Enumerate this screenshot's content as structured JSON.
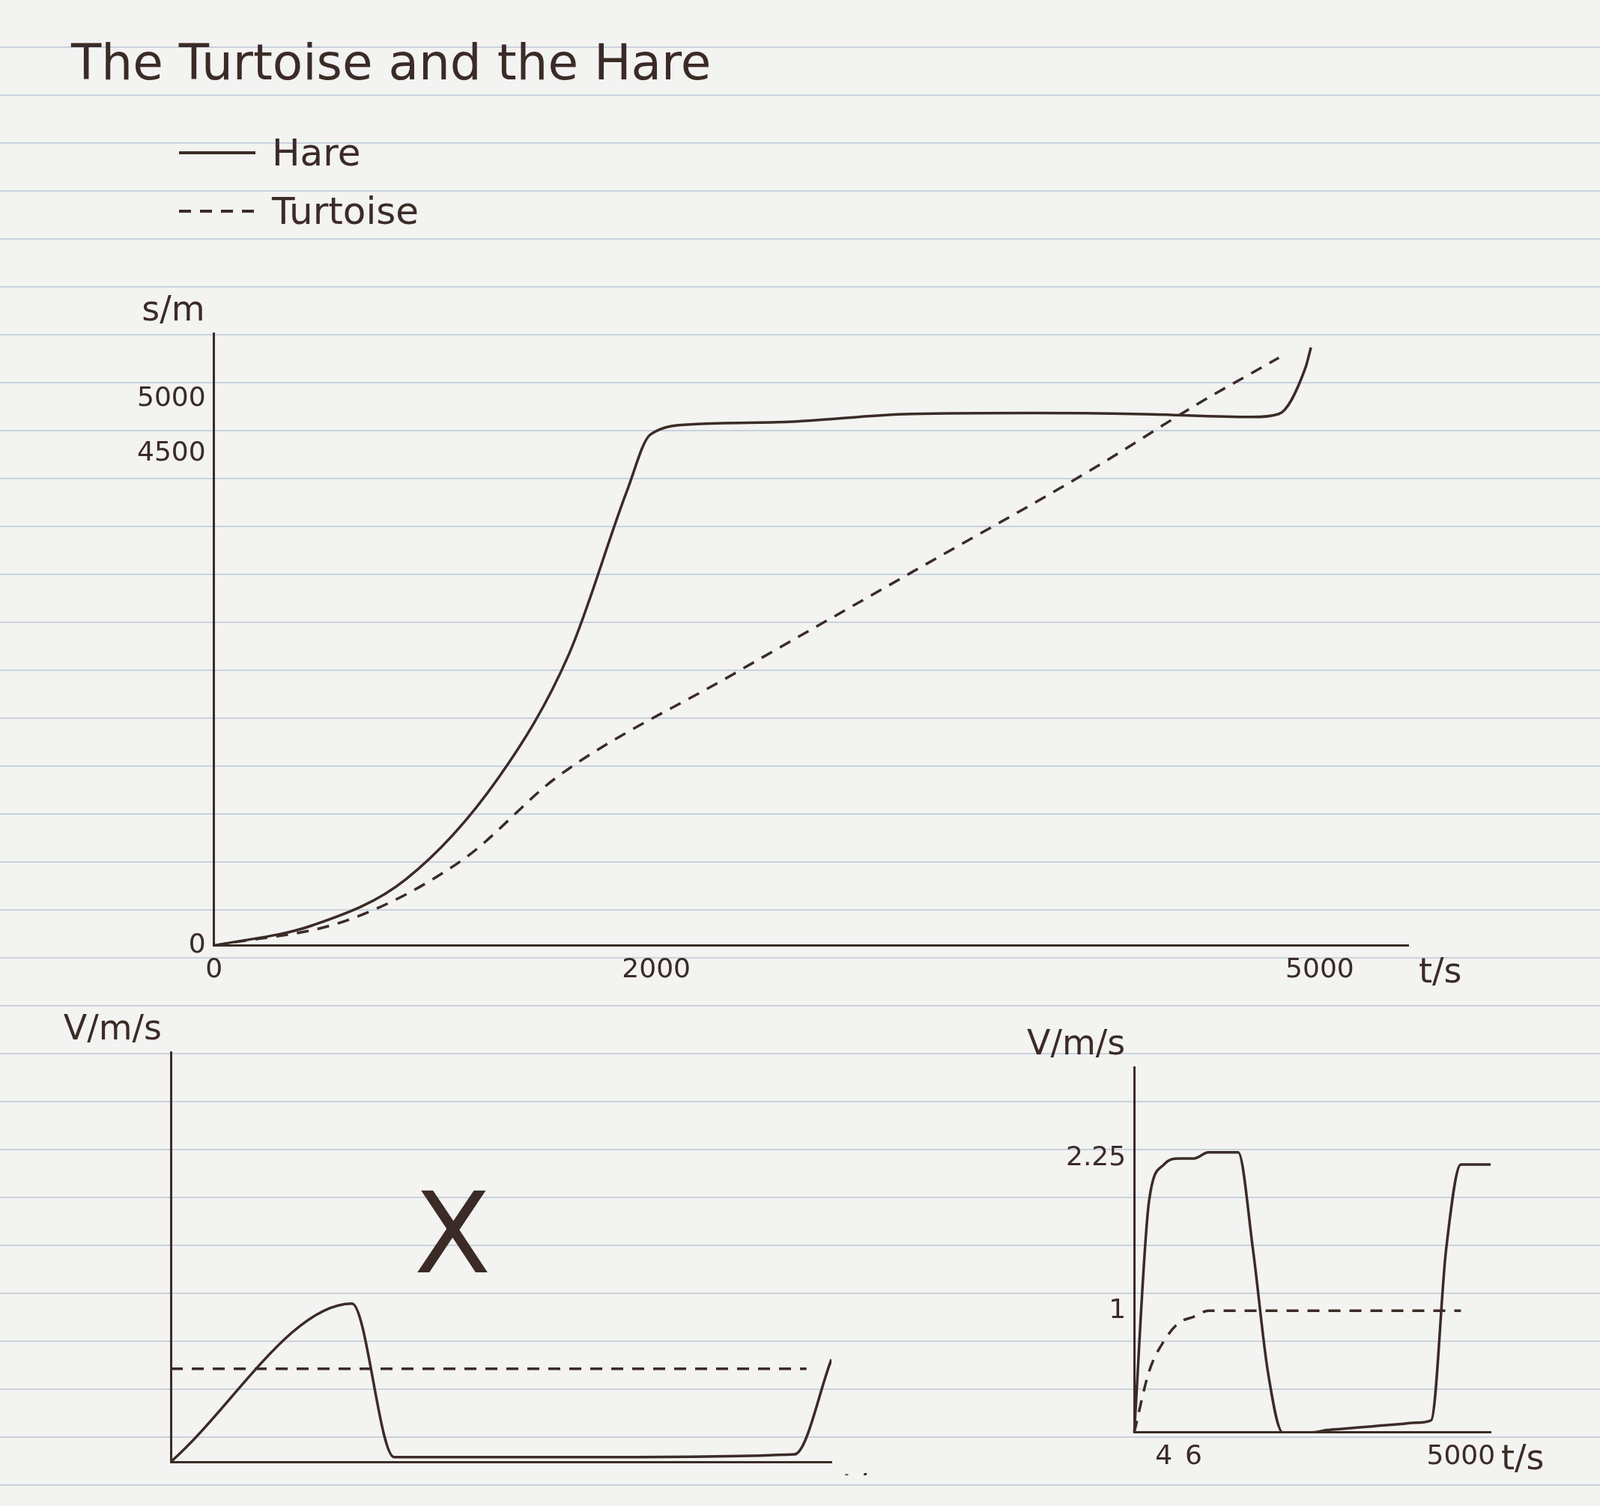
{
  "chart_data": [
    {
      "type": "line",
      "title": "The Turtoise and the Hare",
      "xlabel": "t/s",
      "ylabel": "s/m",
      "xlim": [
        0,
        5400
      ],
      "ylim": [
        0,
        5600
      ],
      "xticks": [
        0,
        2000,
        5000
      ],
      "yticks": [
        0,
        4500,
        5000
      ],
      "legend": "top-left",
      "grid": false,
      "series": [
        {
          "name": "Hare",
          "color": "#3b2b27",
          "line_style": "solid",
          "x": [
            0,
            447,
            868,
            1289,
            1605,
            1868,
            1974,
            2182,
            2600,
            3154,
            3700,
            4200,
            4693,
            4815,
            4935,
            4960
          ],
          "values": [
            0,
            187,
            608,
            1543,
            2665,
            4161,
            4675,
            4769,
            4790,
            4862,
            4870,
            4860,
            4834,
            4862,
            5283,
            5470
          ]
        },
        {
          "name": "Turtoise",
          "color": "#3b2b27",
          "line_style": "dashed",
          "x": [
            0,
            605,
            1131,
            1552,
            2344,
            3154,
            3964,
            4450,
            4815
          ],
          "values": [
            0,
            234,
            795,
            1543,
            2478,
            3413,
            4348,
            4956,
            5376
          ]
        }
      ]
    },
    {
      "type": "line",
      "xlabel": "t/s",
      "ylabel": "V/m/s",
      "xlim": [
        0,
        5300
      ],
      "ylim": [
        0,
        4.4
      ],
      "tick_labels": false,
      "grid": false,
      "annotations": [
        {
          "text": "X",
          "x": 2260,
          "y": 2.35
        }
      ],
      "series": [
        {
          "name": "Hare",
          "color": "#3b2b27",
          "line_style": "solid",
          "x": [
            0,
            1454,
            1792,
            3500,
            5003,
            5300
          ],
          "values": [
            0,
            1.7,
            0.05,
            0.05,
            0.08,
            1.1
          ]
        },
        {
          "name": "Turtoise",
          "color": "#3b2b27",
          "line_style": "dashed",
          "x": [
            0,
            5100
          ],
          "values": [
            1,
            1
          ]
        }
      ]
    },
    {
      "type": "line",
      "xlabel": "t/s",
      "ylabel": "V/m/s",
      "categories": [
        null,
        null,
        "4",
        null,
        "6",
        null,
        null,
        null,
        null,
        null,
        null,
        null,
        null,
        null,
        null,
        null,
        null,
        null,
        null,
        null,
        null,
        null,
        "5000",
        null,
        null
      ],
      "ylim": [
        0,
        3
      ],
      "yticks": [
        1,
        2.25
      ],
      "grid": false,
      "series": [
        {
          "name": "Hare",
          "color": "#3b2b27",
          "line_style": "solid",
          "values": [
            0,
            1.9,
            2.2,
            2.25,
            2.25,
            2.3,
            2.3,
            2.3,
            1.5,
            0.5,
            0,
            0,
            0,
            0.02,
            0.03,
            0.04,
            0.05,
            0.06,
            0.07,
            0.08,
            0.1,
            1.5,
            2.2,
            2.2,
            2.2
          ]
        },
        {
          "name": "Turtoise",
          "color": "#3b2b27",
          "line_style": "dashed",
          "values": [
            0,
            0.5,
            0.75,
            0.9,
            0.95,
            1,
            1,
            1,
            1,
            1,
            1,
            1,
            1,
            1,
            1,
            1,
            1,
            1,
            1,
            1,
            1,
            1,
            1,
            null,
            null
          ]
        }
      ]
    }
  ]
}
